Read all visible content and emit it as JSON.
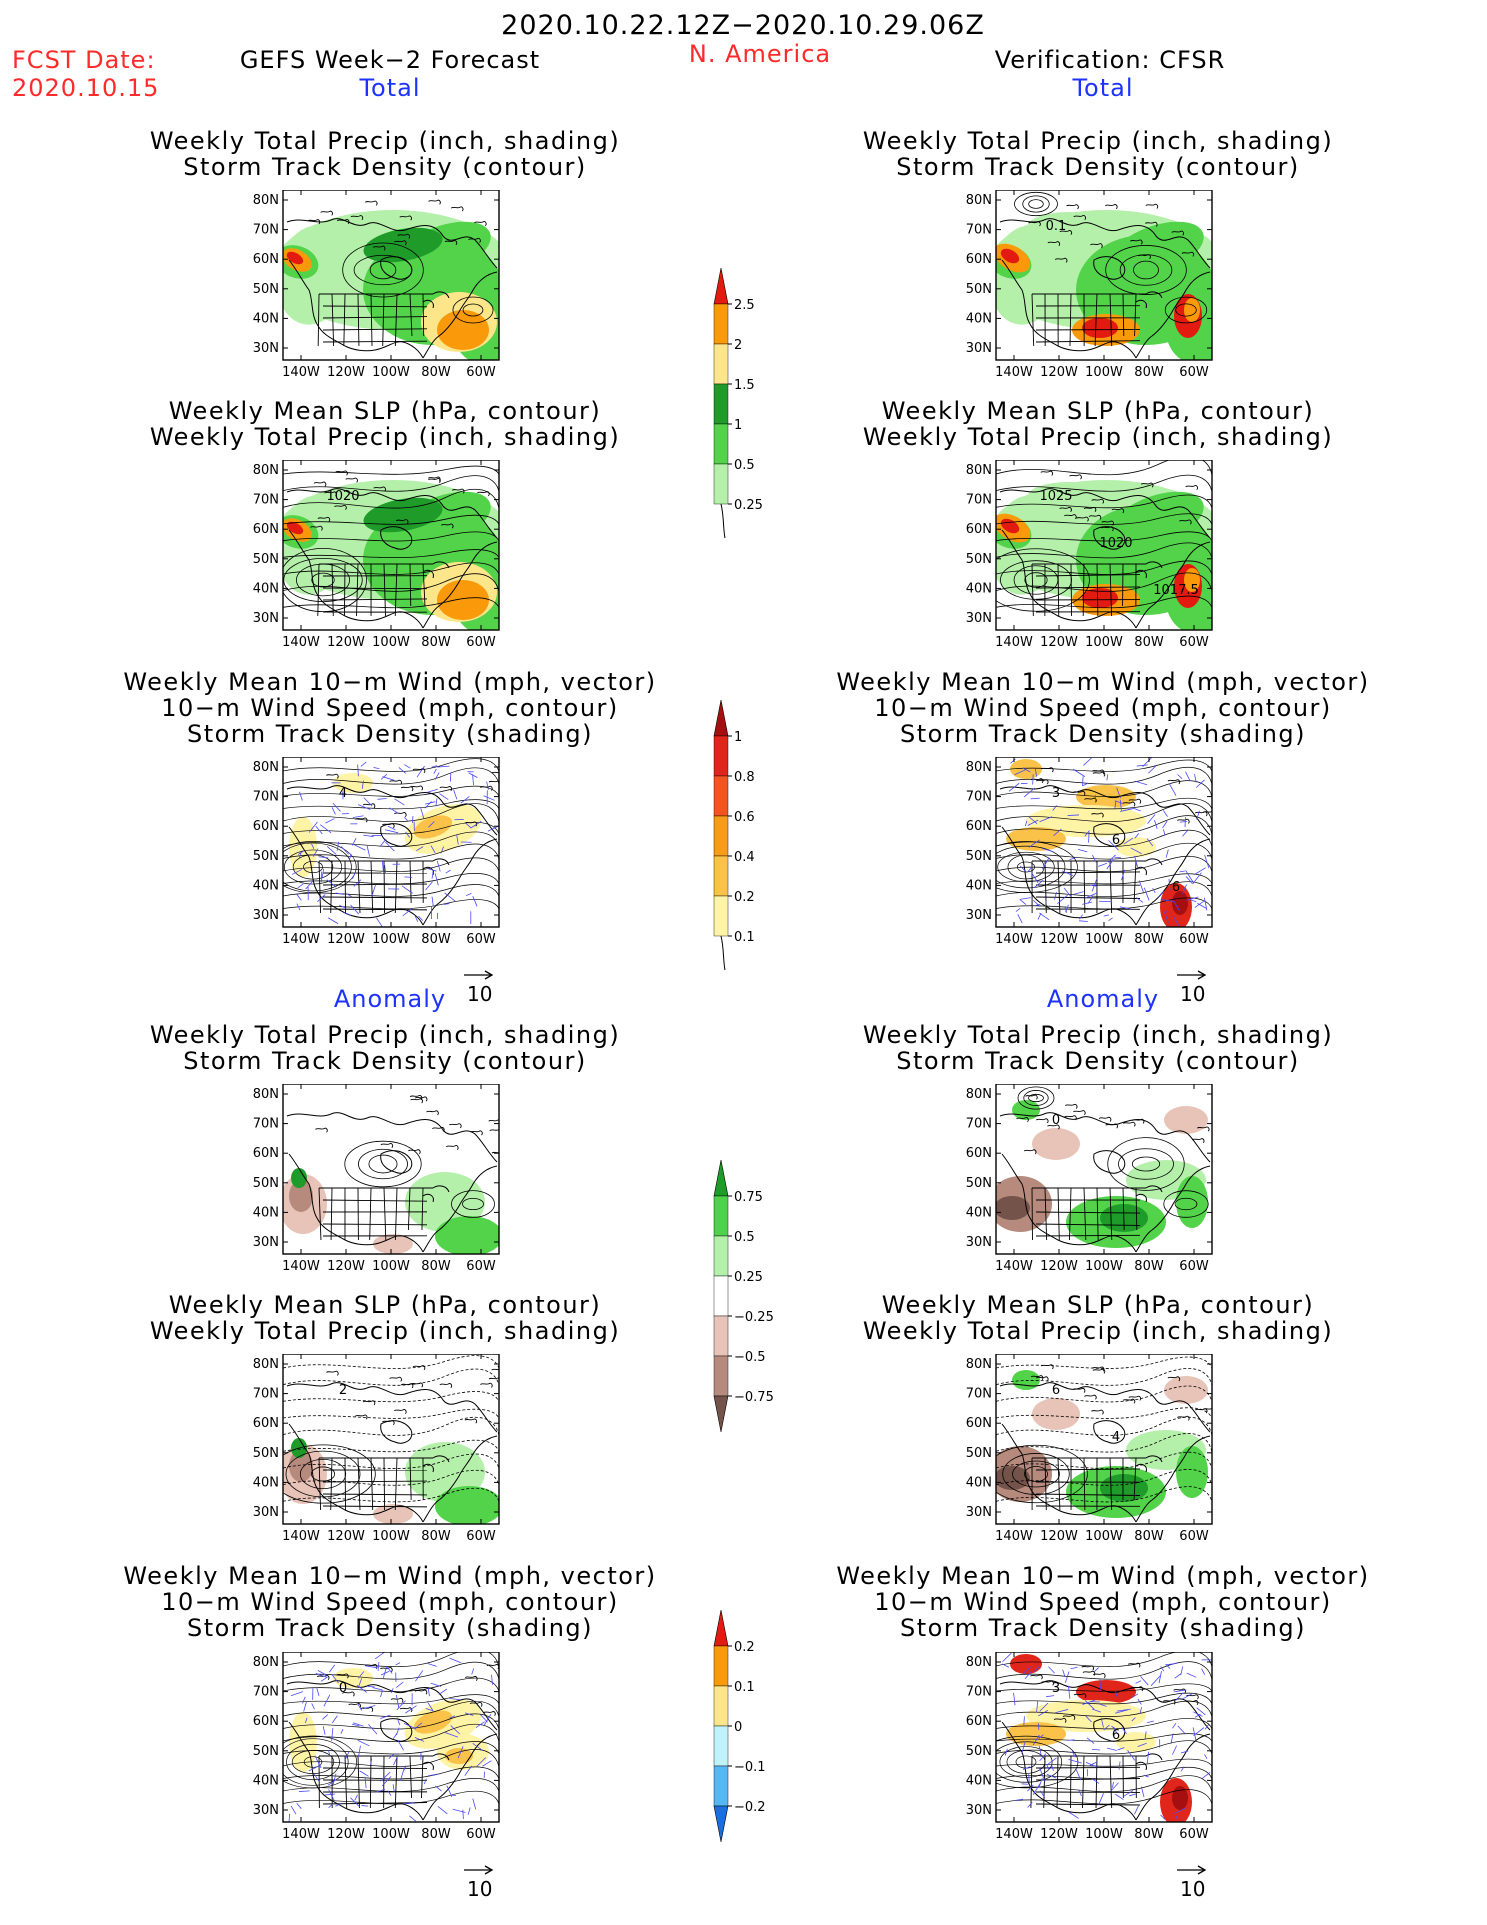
{
  "header": {
    "date_range": "2020.10.22.12Z−2020.10.29.06Z",
    "fcst_label": "FCST Date:",
    "fcst_date": "2020.10.15",
    "left_title": "GEFS Week−2 Forecast",
    "region": "N. America",
    "right_title": "Verification: CFSR"
  },
  "sections": {
    "total": "Total",
    "anomaly": "Anomaly"
  },
  "panel_titles": {
    "precip_storm": [
      "Weekly Total Precip (inch, shading)",
      "Storm Track Density (contour)"
    ],
    "slp_precip": [
      "Weekly Mean SLP (hPa, contour)",
      "Weekly Total Precip (inch, shading)"
    ],
    "wind": [
      "Weekly Mean 10−m Wind (mph, vector)",
      "10−m Wind Speed (mph, contour)",
      "Storm Track Density (shading)"
    ]
  },
  "axes": {
    "lat_ticks": [
      "80N",
      "70N",
      "60N",
      "50N",
      "40N",
      "30N"
    ],
    "lon_ticks": [
      "140W",
      "120W",
      "100W",
      "80W",
      "60W"
    ]
  },
  "vector_scale": "10",
  "contour_labels": {
    "fc_total_slp": [
      "1020"
    ],
    "obs_total_precip": [
      "0.1"
    ],
    "obs_total_slp": [
      "1025",
      "1020",
      "1017.5"
    ],
    "fc_total_wind": [
      "4"
    ],
    "obs_total_wind": [
      "3",
      "6",
      "6"
    ],
    "fc_anom_slp": [
      "2"
    ],
    "obs_anom_slp": [
      "6",
      "4"
    ],
    "fc_anom_wind": [
      "0"
    ],
    "obs_anom_wind": [
      "3",
      "6"
    ],
    "obs_anom_precip": [
      "0"
    ]
  },
  "colorbars": {
    "total_precip": {
      "labels": [
        "2.5",
        "2",
        "1.5",
        "1",
        "0.5",
        "0.25"
      ],
      "colors": [
        "#e31a10",
        "#fa9a0a",
        "#fde68a",
        "#1f9b2a",
        "#52d34a",
        "#b4f0aa"
      ]
    },
    "total_storm": {
      "labels": [
        "1",
        "0.8",
        "0.6",
        "0.4",
        "0.2",
        "0.1"
      ],
      "colors": [
        "#a50f0f",
        "#e0261a",
        "#f2561e",
        "#f89a1a",
        "#fbc24a",
        "#fff3a6"
      ]
    },
    "anom_precip": {
      "labels": [
        "0.75",
        "0.5",
        "0.25",
        "−0.25",
        "−0.5",
        "−0.75"
      ],
      "colors": [
        "#1e9b28",
        "#4fd24b",
        "#b3f1aa",
        "#ffffff",
        "#e8c4b8",
        "#b68a7d",
        "#74534a"
      ]
    },
    "anom_storm": {
      "labels": [
        "0.2",
        "0.1",
        "0",
        "−0.1",
        "−0.2"
      ],
      "colors": [
        "#e31a10",
        "#fa9a0a",
        "#fde68a",
        "#bff2fb",
        "#55b8f3",
        "#1a6fe0"
      ]
    }
  }
}
